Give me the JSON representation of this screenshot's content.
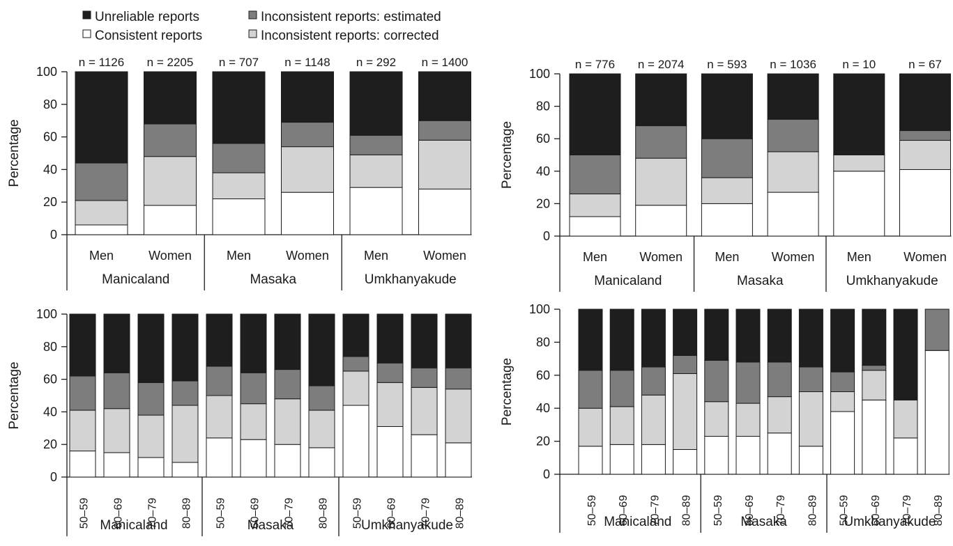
{
  "legend": [
    {
      "label": "Unreliable reports",
      "color": "#1e1e1e"
    },
    {
      "label": "Inconsistent reports: estimated",
      "color": "#7d7d7d"
    },
    {
      "label": "Consistent reports",
      "color": "#ffffff"
    },
    {
      "label": "Inconsistent reports: corrected",
      "color": "#d3d3d3"
    }
  ],
  "chart_data": [
    {
      "type": "bar",
      "stacked": true,
      "ylabel": "Percentage",
      "ylim": [
        0,
        100
      ],
      "yticks": [
        0,
        20,
        40,
        60,
        80,
        100
      ],
      "grid": false,
      "legend_position": "top-left",
      "sites": [
        "Manicaland",
        "Masaka",
        "Umkhanyakude"
      ],
      "categories": [
        "Men",
        "Women",
        "Men",
        "Women",
        "Men",
        "Women"
      ],
      "n_labels": [
        "n = 1126",
        "n = 2205",
        "n = 707",
        "n = 1148",
        "n = 292",
        "n = 1400"
      ],
      "series": [
        {
          "name": "Consistent reports",
          "values": [
            6,
            18,
            22,
            26,
            29,
            28
          ]
        },
        {
          "name": "Inconsistent reports: corrected",
          "values": [
            15,
            30,
            16,
            28,
            20,
            30
          ]
        },
        {
          "name": "Inconsistent reports: estimated",
          "values": [
            23,
            20,
            18,
            15,
            12,
            12
          ]
        },
        {
          "name": "Unreliable reports",
          "values": [
            56,
            32,
            44,
            31,
            39,
            30
          ]
        }
      ]
    },
    {
      "type": "bar",
      "stacked": true,
      "ylabel": "Percentage",
      "ylim": [
        0,
        100
      ],
      "yticks": [
        0,
        20,
        40,
        60,
        80,
        100
      ],
      "grid": false,
      "sites": [
        "Manicaland",
        "Masaka",
        "Umkhanyakude"
      ],
      "categories": [
        "Men",
        "Women",
        "Men",
        "Women",
        "Men",
        "Women"
      ],
      "n_labels": [
        "n = 776",
        "n = 2074",
        "n = 593",
        "n = 1036",
        "n = 10",
        "n = 67"
      ],
      "series": [
        {
          "name": "Consistent reports",
          "values": [
            12,
            19,
            20,
            27,
            40,
            41
          ]
        },
        {
          "name": "Inconsistent reports: corrected",
          "values": [
            14,
            29,
            16,
            25,
            10,
            18
          ]
        },
        {
          "name": "Inconsistent reports: estimated",
          "values": [
            24,
            20,
            24,
            20,
            0,
            6
          ]
        },
        {
          "name": "Unreliable reports",
          "values": [
            50,
            32,
            40,
            28,
            50,
            35
          ]
        }
      ]
    },
    {
      "type": "bar",
      "stacked": true,
      "ylabel": "Percentage",
      "ylim": [
        0,
        100
      ],
      "yticks": [
        0,
        20,
        40,
        60,
        80,
        100
      ],
      "grid": false,
      "sites": [
        "Manicaland",
        "Masaka",
        "Umkhanyakude"
      ],
      "categories": [
        "50–59",
        "60–69",
        "70–79",
        "80–89",
        "50–59",
        "60–69",
        "70–79",
        "80–89",
        "50–59",
        "60–69",
        "70–79",
        "80–89"
      ],
      "series": [
        {
          "name": "Consistent reports",
          "values": [
            16,
            15,
            12,
            9,
            24,
            23,
            20,
            18,
            44,
            31,
            26,
            21
          ]
        },
        {
          "name": "Inconsistent reports: corrected",
          "values": [
            25,
            27,
            26,
            35,
            26,
            22,
            28,
            23,
            21,
            27,
            29,
            33
          ]
        },
        {
          "name": "Inconsistent reports: estimated",
          "values": [
            21,
            22,
            20,
            15,
            18,
            19,
            18,
            15,
            9,
            12,
            12,
            13
          ]
        },
        {
          "name": "Unreliable reports",
          "values": [
            38,
            36,
            42,
            41,
            32,
            36,
            34,
            44,
            26,
            30,
            33,
            33
          ]
        }
      ]
    },
    {
      "type": "bar",
      "stacked": true,
      "ylabel": "Percentage",
      "ylim": [
        0,
        100
      ],
      "yticks": [
        0,
        20,
        40,
        60,
        80,
        100
      ],
      "grid": false,
      "sites": [
        "Manicaland",
        "Masaka",
        "Umkhanyakude"
      ],
      "categories": [
        "50–59",
        "60–69",
        "70–79",
        "80–89",
        "50–59",
        "60–69",
        "70–79",
        "80–89",
        "50–59",
        "60–69",
        "70–79",
        "80–89"
      ],
      "series": [
        {
          "name": "Consistent reports",
          "values": [
            17,
            18,
            18,
            15,
            23,
            23,
            25,
            17,
            38,
            45,
            22,
            75
          ]
        },
        {
          "name": "Inconsistent reports: corrected",
          "values": [
            23,
            23,
            30,
            46,
            21,
            20,
            22,
            33,
            12,
            18,
            23,
            0
          ]
        },
        {
          "name": "Inconsistent reports: estimated",
          "values": [
            23,
            22,
            17,
            11,
            25,
            25,
            21,
            15,
            12,
            3,
            0,
            25
          ]
        },
        {
          "name": "Unreliable reports",
          "values": [
            37,
            37,
            35,
            28,
            31,
            32,
            32,
            35,
            38,
            34,
            55,
            0
          ]
        }
      ]
    }
  ]
}
